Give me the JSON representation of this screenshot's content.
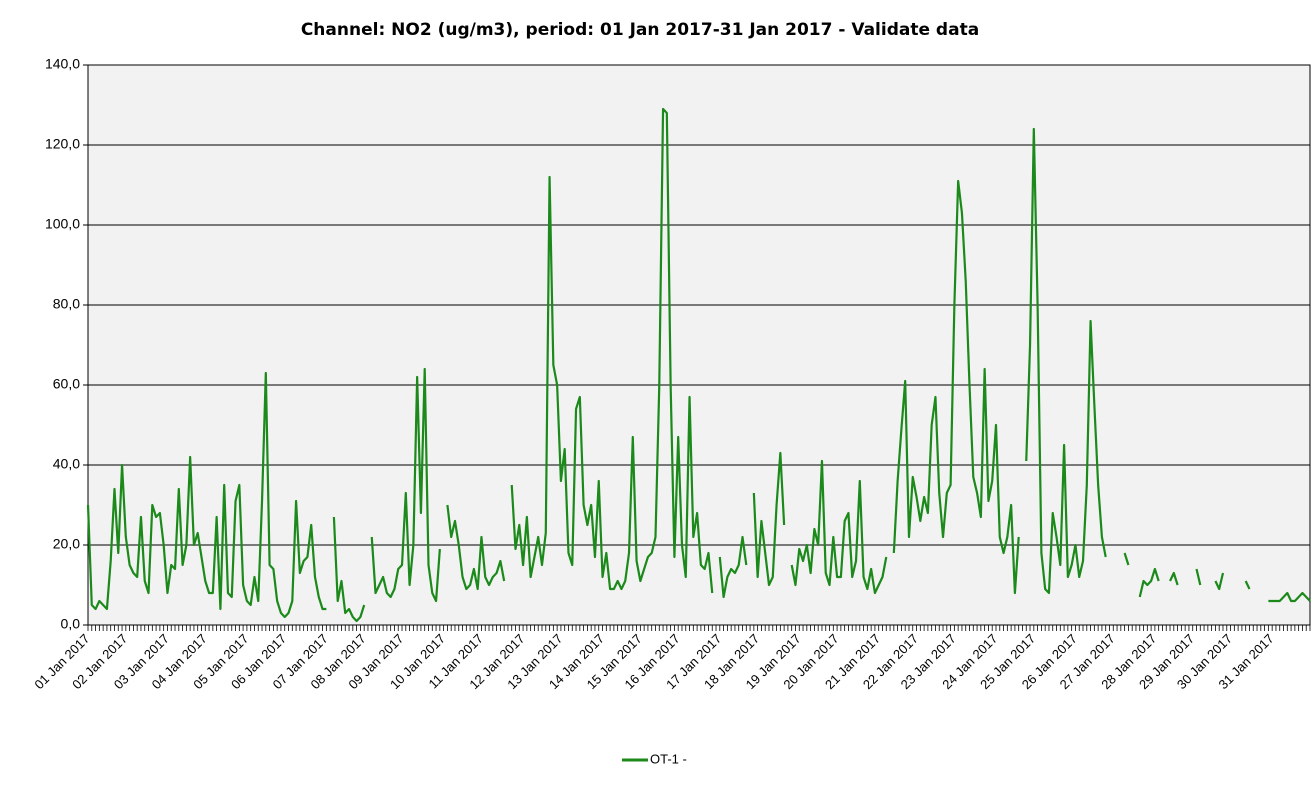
{
  "chart_data": {
    "type": "line",
    "title": "Channel: NO2 (ug/m3), period: 01 Jan 2017-31 Jan 2017 - Validate data",
    "ylim": [
      0,
      140
    ],
    "yticks": [
      {
        "value": 0,
        "label": "0,0"
      },
      {
        "value": 20,
        "label": "20,0"
      },
      {
        "value": 40,
        "label": "40,0"
      },
      {
        "value": 60,
        "label": "60,0"
      },
      {
        "value": 80,
        "label": "80,0"
      },
      {
        "value": 100,
        "label": "100,0"
      },
      {
        "value": 120,
        "label": "120,0"
      },
      {
        "value": 140,
        "label": "140,0"
      }
    ],
    "grid": true,
    "legend": "bottom",
    "categories": [
      "01 Jan 2017",
      null,
      null,
      null,
      null,
      null,
      null,
      null,
      null,
      null,
      "02 Jan 2017",
      null,
      null,
      null,
      null,
      null,
      null,
      null,
      null,
      null,
      null,
      "03 Jan 2017",
      null,
      null,
      null,
      null,
      null,
      null,
      null,
      null,
      null,
      "04 Jan 2017",
      null,
      null,
      null,
      null,
      null,
      null,
      null,
      null,
      null,
      null,
      "05 Jan 2017",
      null,
      null,
      null,
      null,
      null,
      null,
      null,
      null,
      null,
      "06 Jan 2017",
      null,
      null,
      null,
      null,
      null,
      null,
      null,
      null,
      null,
      null,
      "07 Jan 2017",
      null,
      null,
      null,
      null,
      null,
      null,
      null,
      null,
      null,
      "08 Jan 2017",
      null,
      null,
      null,
      null,
      null,
      null,
      null,
      null,
      null,
      "09 Jan 2017",
      null,
      null,
      null,
      null,
      null,
      null,
      null,
      null,
      null,
      null,
      "10 Jan 2017",
      null,
      null,
      null,
      null,
      null,
      null,
      null,
      null,
      null,
      "11 Jan 2017",
      null,
      null,
      null,
      null,
      null,
      null,
      null,
      null,
      null,
      null,
      "12 Jan 2017",
      null,
      null,
      null,
      null,
      null,
      null,
      null,
      null,
      null,
      "13 Jan 2017",
      null,
      null,
      null,
      null,
      null,
      null,
      null,
      null,
      null,
      null,
      "14 Jan 2017",
      null,
      null,
      null,
      null,
      null,
      null,
      null,
      null,
      null,
      "15 Jan 2017",
      null,
      null,
      null,
      null,
      null,
      null,
      null,
      null,
      null,
      "16 Jan 2017",
      null,
      null,
      null,
      null,
      null,
      null,
      null,
      null,
      null,
      null,
      "17 Jan 2017",
      null,
      null,
      null,
      null,
      null,
      null,
      null,
      null,
      null,
      "18 Jan 2017",
      null,
      null,
      null,
      null,
      null,
      null,
      null,
      null,
      null,
      null,
      "19 Jan 2017",
      null,
      null,
      null,
      null,
      null,
      null,
      null,
      null,
      null,
      "20 Jan 2017",
      null,
      null,
      null,
      null,
      null,
      null,
      null,
      null,
      null,
      null,
      "21 Jan 2017",
      null,
      null,
      null,
      null,
      null,
      null,
      null,
      null,
      null,
      "22 Jan 2017",
      null,
      null,
      null,
      null,
      null,
      null,
      null,
      null,
      null,
      "23 Jan 2017",
      null,
      null,
      null,
      null,
      null,
      null,
      null,
      null,
      null,
      null,
      "24 Jan 2017",
      null,
      null,
      null,
      null,
      null,
      null,
      null,
      null,
      null,
      "25 Jan 2017",
      null,
      null,
      null,
      null,
      null,
      null,
      null,
      null,
      null,
      null,
      "26 Jan 2017",
      null,
      null,
      null,
      null,
      null,
      null,
      null,
      null,
      null,
      "27 Jan 2017",
      null,
      null,
      null,
      null,
      null,
      null,
      null,
      null,
      null,
      null,
      "28 Jan 2017",
      null,
      null,
      null,
      null,
      null,
      null,
      null,
      null,
      null,
      "29 Jan 2017",
      null,
      null,
      null,
      null,
      null,
      null,
      null,
      null,
      null,
      "30 Jan 2017",
      null,
      null,
      null,
      null,
      null,
      null,
      null,
      null,
      null,
      null,
      "31 Jan 2017",
      null,
      null,
      null,
      null,
      null,
      null,
      null,
      null,
      null,
      null
    ],
    "series": [
      {
        "name": "OT-1 -",
        "color": "#1b8a1b",
        "values": [
          30,
          5,
          4,
          6,
          5,
          4,
          16,
          34,
          18,
          40,
          22,
          15,
          13,
          12,
          27,
          11,
          8,
          30,
          27,
          28,
          20,
          8,
          15,
          14,
          34,
          15,
          20,
          42,
          20,
          23,
          17,
          11,
          8,
          8,
          27,
          4,
          35,
          8,
          7,
          31,
          35,
          10,
          6,
          5,
          12,
          6,
          31,
          63,
          15,
          14,
          6,
          3,
          2,
          3,
          6,
          31,
          13,
          16,
          17,
          25,
          12,
          7,
          4,
          4,
          null,
          27,
          6,
          11,
          3,
          4,
          2,
          1,
          2,
          5,
          null,
          22,
          8,
          10,
          12,
          8,
          7,
          9,
          14,
          15,
          33,
          10,
          20,
          62,
          28,
          64,
          15,
          8,
          6,
          19,
          null,
          30,
          22,
          26,
          20,
          12,
          9,
          10,
          14,
          9,
          22,
          12,
          10,
          12,
          13,
          16,
          11,
          null,
          35,
          19,
          25,
          15,
          27,
          12,
          17,
          22,
          15,
          23,
          112,
          65,
          60,
          36,
          44,
          18,
          15,
          54,
          57,
          30,
          25,
          30,
          17,
          36,
          12,
          18,
          9,
          9,
          11,
          9,
          11,
          18,
          47,
          16,
          11,
          14,
          17,
          18,
          22,
          60,
          129,
          128,
          60,
          17,
          47,
          20,
          12,
          57,
          22,
          28,
          15,
          14,
          18,
          8,
          null,
          17,
          7,
          12,
          14,
          13,
          15,
          22,
          15,
          null,
          33,
          12,
          26,
          18,
          10,
          12,
          30,
          43,
          25,
          null,
          15,
          10,
          19,
          16,
          20,
          13,
          24,
          20,
          41,
          13,
          10,
          22,
          12,
          12,
          26,
          28,
          12,
          16,
          36,
          12,
          9,
          14,
          8,
          10,
          12,
          17,
          null,
          18,
          36,
          49,
          61,
          22,
          37,
          32,
          26,
          32,
          28,
          50,
          57,
          33,
          22,
          33,
          35,
          80,
          111,
          103,
          86,
          60,
          37,
          33,
          27,
          64,
          31,
          36,
          50,
          22,
          18,
          22,
          30,
          8,
          22,
          null,
          41,
          70,
          124,
          80,
          18,
          9,
          8,
          28,
          22,
          15,
          45,
          12,
          15,
          20,
          12,
          16,
          35,
          76,
          55,
          35,
          22,
          17,
          null,
          null,
          null,
          null,
          18,
          15,
          null,
          null,
          7,
          11,
          10,
          11,
          14,
          11,
          null,
          null,
          11,
          13,
          10,
          null,
          null,
          null,
          null,
          14,
          10,
          null,
          null,
          null,
          11,
          9,
          13,
          null,
          null,
          null,
          null,
          null,
          11,
          9,
          null,
          null,
          null,
          null,
          6,
          6,
          6,
          6,
          7,
          8,
          6,
          6,
          7,
          8,
          7,
          6
        ]
      }
    ]
  }
}
